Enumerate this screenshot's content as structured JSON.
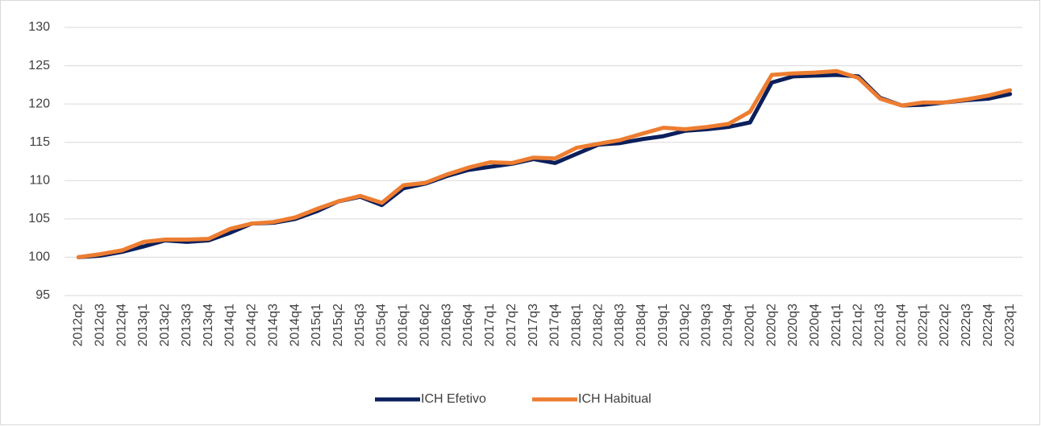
{
  "chart_data": {
    "type": "line",
    "categories": [
      "2012q2",
      "2012q3",
      "2012q4",
      "2013q1",
      "2013q2",
      "2013q3",
      "2013q4",
      "2014q1",
      "2014q2",
      "2014q3",
      "2014q4",
      "2015q1",
      "2015q2",
      "2015q3",
      "2015q4",
      "2016q1",
      "2016q2",
      "2016q3",
      "2016q4",
      "2017q1",
      "2017q2",
      "2017q3",
      "2017q4",
      "2018q1",
      "2018q2",
      "2018q3",
      "2018q4",
      "2019q1",
      "2019q2",
      "2019q3",
      "2019q4",
      "2020q1",
      "2020q2",
      "2020q3",
      "2020q4",
      "2021q1",
      "2021q2",
      "2021q3",
      "2021q4",
      "2022q1",
      "2022q2",
      "2022q3",
      "2022q4",
      "2023q1"
    ],
    "series": [
      {
        "name": "ICH Efetivo",
        "color": "#0b1f5c",
        "values": [
          100,
          100.2,
          100.7,
          101.4,
          102.2,
          102.0,
          102.2,
          103.2,
          104.4,
          104.5,
          105.0,
          106.0,
          107.3,
          107.9,
          106.8,
          109.0,
          109.6,
          110.6,
          111.4,
          111.8,
          112.2,
          112.8,
          112.3,
          113.5,
          114.7,
          114.9,
          115.4,
          115.8,
          116.5,
          116.7,
          117.0,
          117.6,
          122.8,
          123.6,
          123.7,
          123.8,
          123.6,
          120.8,
          119.8,
          119.9,
          120.2,
          120.5,
          120.7,
          121.3
        ]
      },
      {
        "name": "ICH Habitual",
        "color": "#ed7d31",
        "values": [
          100,
          100.4,
          100.9,
          102.0,
          102.3,
          102.3,
          102.4,
          103.7,
          104.4,
          104.6,
          105.2,
          106.3,
          107.3,
          108.0,
          107.1,
          109.4,
          109.7,
          110.8,
          111.7,
          112.4,
          112.3,
          113.0,
          112.9,
          114.3,
          114.8,
          115.3,
          116.1,
          116.9,
          116.7,
          117.0,
          117.4,
          119.0,
          123.8,
          124.0,
          124.1,
          124.3,
          123.4,
          120.7,
          119.8,
          120.2,
          120.2,
          120.6,
          121.1,
          121.8
        ]
      }
    ],
    "ylim": [
      95,
      130
    ],
    "yticks": [
      95,
      100,
      105,
      110,
      115,
      120,
      125,
      130
    ],
    "grid": true,
    "legend": "bottom"
  }
}
